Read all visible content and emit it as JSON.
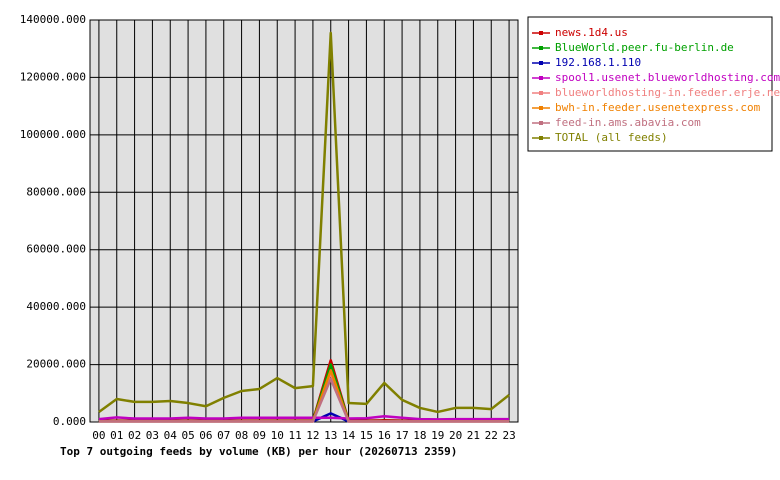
{
  "chart_data": {
    "type": "line",
    "title": "Top 7 outgoing feeds by volume (KB) per hour (20260713 2359)",
    "categories": [
      "00",
      "01",
      "02",
      "03",
      "04",
      "05",
      "06",
      "07",
      "08",
      "09",
      "10",
      "11",
      "12",
      "13",
      "14",
      "15",
      "16",
      "17",
      "18",
      "19",
      "20",
      "21",
      "22",
      "23"
    ],
    "ylim": [
      0,
      140000
    ],
    "yticks": [
      {
        "value": 0,
        "label": "0.000"
      },
      {
        "value": 20000,
        "label": "20000.000"
      },
      {
        "value": 40000,
        "label": "40000.000"
      },
      {
        "value": 60000,
        "label": "60000.000"
      },
      {
        "value": 80000,
        "label": "80000.000"
      },
      {
        "value": 100000,
        "label": "100000.000"
      },
      {
        "value": 120000,
        "label": "120000.000"
      },
      {
        "value": 140000,
        "label": "140000.000"
      }
    ],
    "grid": true,
    "legend": "right",
    "series": [
      {
        "name": "news.1d4.us",
        "color": "#cc0000",
        "values": [
          400,
          500,
          400,
          400,
          400,
          500,
          400,
          400,
          500,
          500,
          500,
          500,
          500,
          21500,
          500,
          500,
          600,
          500,
          400,
          300,
          400,
          400,
          400,
          400
        ]
      },
      {
        "name": "BlueWorld.peer.fu-berlin.de",
        "color": "#00a000",
        "values": [
          300,
          300,
          300,
          300,
          300,
          300,
          300,
          300,
          300,
          300,
          300,
          300,
          300,
          20000,
          300,
          300,
          300,
          300,
          300,
          300,
          300,
          300,
          300,
          300
        ]
      },
      {
        "name": "192.168.1.110",
        "color": "#0000b0",
        "values": [
          200,
          200,
          200,
          200,
          200,
          200,
          200,
          200,
          200,
          200,
          200,
          200,
          200,
          3000,
          200,
          200,
          200,
          200,
          200,
          200,
          200,
          200,
          200,
          200
        ]
      },
      {
        "name": "spool1.usenet.blueworldhosting.com",
        "color": "#c000c0",
        "values": [
          1000,
          1600,
          1200,
          1200,
          1200,
          1500,
          1200,
          1200,
          1500,
          1500,
          1500,
          1500,
          1500,
          1500,
          1200,
          1300,
          2000,
          1500,
          1000,
          900,
          1000,
          1000,
          1000,
          1000
        ]
      },
      {
        "name": "blueworldhosting-in.feeder.erje.net",
        "color": "#f08080",
        "values": [
          200,
          200,
          200,
          200,
          200,
          200,
          200,
          200,
          200,
          200,
          200,
          200,
          200,
          17000,
          200,
          200,
          200,
          200,
          200,
          200,
          200,
          200,
          200,
          200
        ]
      },
      {
        "name": "bwh-in.feeder.usenetexpress.com",
        "color": "#f08000",
        "values": [
          200,
          200,
          200,
          200,
          200,
          200,
          200,
          200,
          200,
          200,
          200,
          200,
          200,
          18000,
          200,
          200,
          200,
          200,
          200,
          200,
          200,
          200,
          200,
          200
        ]
      },
      {
        "name": "feed-in.ams.abavia.com",
        "color": "#c07080",
        "values": [
          200,
          200,
          200,
          200,
          200,
          200,
          200,
          200,
          200,
          200,
          200,
          200,
          200,
          15000,
          200,
          200,
          200,
          200,
          200,
          200,
          200,
          200,
          200,
          200
        ]
      },
      {
        "name": "TOTAL (all feeds)",
        "color": "#808000",
        "values": [
          3500,
          8000,
          7000,
          7000,
          7300,
          6600,
          5500,
          8400,
          10800,
          11500,
          15300,
          11800,
          12500,
          135500,
          6600,
          6300,
          13600,
          7700,
          4900,
          3500,
          4900,
          4900,
          4500,
          9400
        ]
      }
    ]
  }
}
